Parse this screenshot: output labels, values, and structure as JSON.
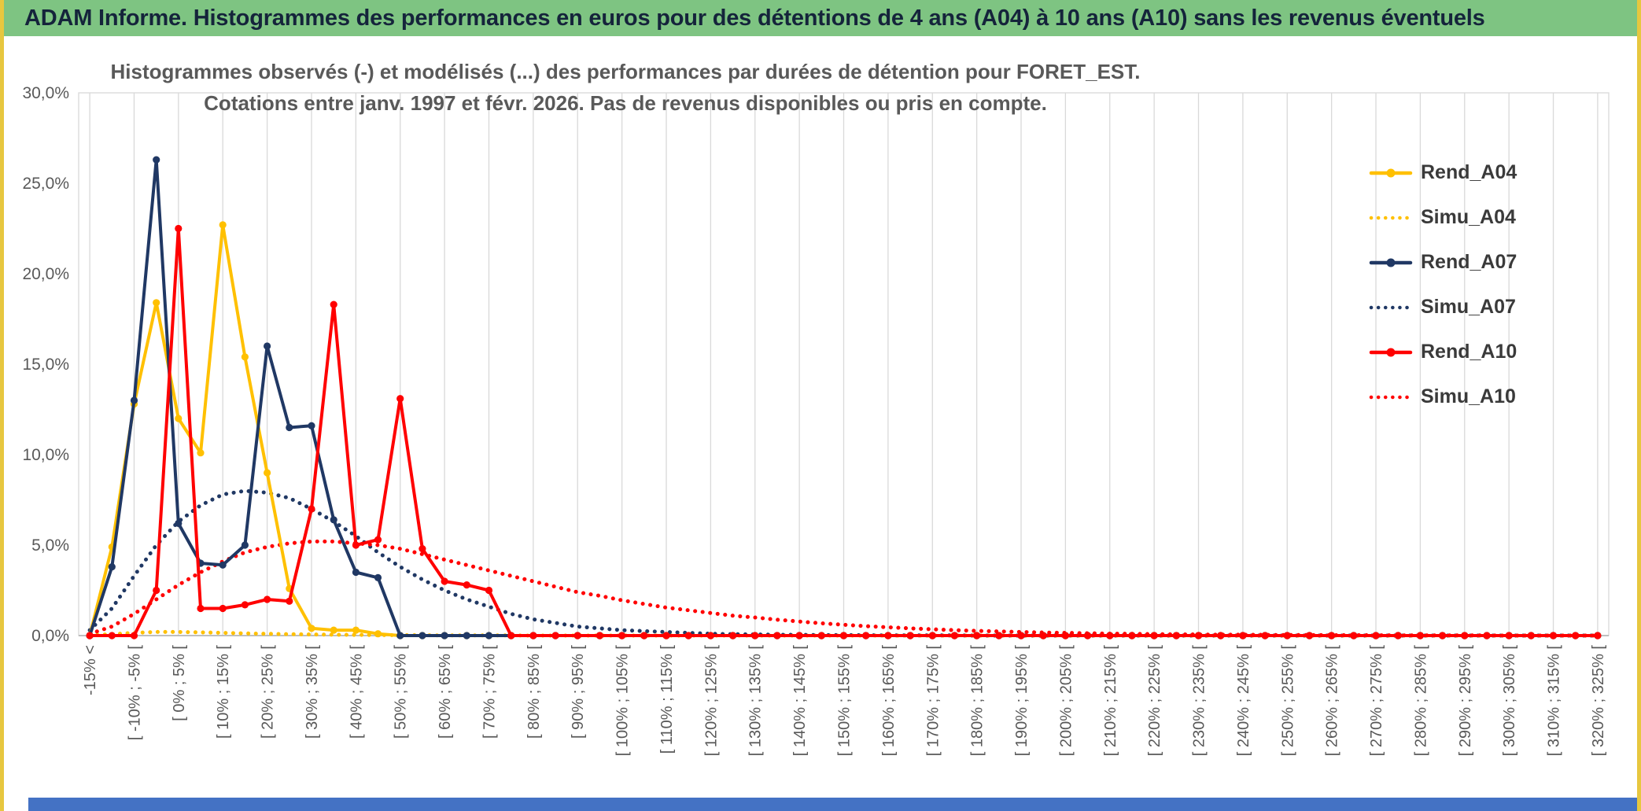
{
  "header": {
    "title": "ADAM Informe. Histogrammes des performances en euros pour des détentions de 4 ans (A04) à 10 ans (A10) sans les revenus éventuels"
  },
  "colors": {
    "header_bg": "#7EC482",
    "header_text": "#15243B",
    "grid": "#D9D9D9",
    "axis_text": "#595959",
    "subtitle_text": "#595959",
    "side_border": "#E7C73F",
    "bottom_bar": "#4472C4",
    "gold": "#FFC000",
    "navy": "#203864",
    "red": "#FF0000"
  },
  "chart_data": {
    "type": "line",
    "title_lines": [
      "Histogrammes observés (-) et modélisés (...) des performances par durées de détention pour FORET_EST.",
      "Cotations entre janv. 1997 et févr. 2026. Pas de revenus disponibles ou pris en compte."
    ],
    "y_axis": {
      "min_percent": 0,
      "max_percent": 30,
      "tick_step_percent": 5,
      "tick_labels": [
        "0,0%",
        "5,0%",
        "10,0%",
        "15,0%",
        "20,0%",
        "25,0%",
        "30,0%"
      ]
    },
    "x_axis": {
      "bins_total": 69,
      "tick_every": 2,
      "unlabeled_bins": "intermediate 5%-wide intervals between the labeled ticks",
      "tick_labels": [
        "-15% <",
        "[ -10% ; -5% [",
        "[ 0% ; 5% [",
        "[ 10% ; 15% [",
        "[ 20% ; 25% [",
        "[ 30% ; 35% [",
        "[ 40% ; 45% [",
        "[ 50% ; 55% [",
        "[ 60% ; 65% [",
        "[ 70% ; 75% [",
        "[ 80% ; 85% [",
        "[ 90% ; 95% [",
        "[ 100% ; 105% [",
        "[ 110% ; 115% [",
        "[ 120% ; 125% [",
        "[ 130% ; 135% [",
        "[ 140% ; 145% [",
        "[ 150% ; 155% [",
        "[ 160% ; 165% [",
        "[ 170% ; 175% [",
        "[ 180% ; 185% [",
        "[ 190% ; 195% [",
        "[ 200% ; 205% [",
        "[ 210% ; 215% [",
        "[ 220% ; 225% [",
        "[ 230% ; 235% [",
        "[ 240% ; 245% [",
        "[ 250% ; 255% [",
        "[ 260% ; 265% [",
        "[ 270% ; 275% [",
        "[ 280% ; 285% [",
        "[ 290% ; 295% [",
        "[ 300% ; 305% [",
        "[ 310% ; 315% [",
        "[ 320% ; 325% ["
      ]
    },
    "values_unit": "percent of observations per bin (estimated from plot)",
    "zero_padded_to_bins_total": true,
    "series": [
      {
        "name": "Rend_A04",
        "color": "#FFC000",
        "style": "solid",
        "values": [
          0,
          4.9,
          12.8,
          18.4,
          12.0,
          10.1,
          22.7,
          15.4,
          9.0,
          2.6,
          0.4,
          0.3,
          0.3,
          0.1,
          0
        ]
      },
      {
        "name": "Simu_A04",
        "color": "#FFC000",
        "style": "dotted",
        "values": [
          0.02,
          0.08,
          0.15,
          0.2,
          0.2,
          0.18,
          0.15,
          0.12,
          0.1,
          0.08,
          0.06,
          0.05,
          0.04,
          0.03,
          0.02,
          0.02,
          0.01,
          0.01,
          0.01,
          0.01
        ]
      },
      {
        "name": "Rend_A07",
        "color": "#203864",
        "style": "solid",
        "values": [
          0,
          3.8,
          13.0,
          26.3,
          6.2,
          4.0,
          3.9,
          5.0,
          16.0,
          11.5,
          11.6,
          6.4,
          3.5,
          3.2,
          0
        ]
      },
      {
        "name": "Simu_A07",
        "color": "#203864",
        "style": "dotted",
        "values": [
          0.3,
          1.5,
          3.3,
          5.0,
          6.3,
          7.2,
          7.8,
          8.0,
          7.9,
          7.6,
          7.0,
          6.3,
          5.5,
          4.6,
          3.8,
          3.1,
          2.5,
          2.0,
          1.6,
          1.2,
          0.9,
          0.7,
          0.5,
          0.4,
          0.3,
          0.25,
          0.2,
          0.15,
          0.1,
          0.08,
          0.06,
          0.05,
          0.04,
          0.03,
          0.02,
          0.02,
          0.01,
          0.01,
          0.01,
          0.01
        ]
      },
      {
        "name": "Rend_A10",
        "color": "#FF0000",
        "style": "solid",
        "values": [
          0,
          0,
          0,
          2.5,
          22.5,
          1.5,
          1.5,
          1.7,
          2.0,
          1.9,
          7.0,
          18.3,
          5.0,
          5.3,
          13.1,
          4.8,
          3.0,
          2.8,
          2.5,
          0
        ]
      },
      {
        "name": "Simu_A10",
        "color": "#FF0000",
        "style": "dotted",
        "values": [
          0.1,
          0.5,
          1.2,
          2.0,
          2.8,
          3.5,
          4.1,
          4.6,
          4.9,
          5.1,
          5.2,
          5.2,
          5.1,
          5.0,
          4.8,
          4.5,
          4.2,
          3.9,
          3.6,
          3.3,
          3.0,
          2.7,
          2.4,
          2.2,
          1.95,
          1.75,
          1.55,
          1.4,
          1.25,
          1.1,
          1.0,
          0.88,
          0.78,
          0.68,
          0.6,
          0.52,
          0.46,
          0.4,
          0.35,
          0.3,
          0.26,
          0.23,
          0.2,
          0.17,
          0.15,
          0.13,
          0.11,
          0.1,
          0.08,
          0.07,
          0.06,
          0.05,
          0.05,
          0.04,
          0.03,
          0.03,
          0.02,
          0.02,
          0.02,
          0.01,
          0.01,
          0.01,
          0.01,
          0.01
        ]
      }
    ],
    "legend": {
      "position": "right",
      "entries": [
        "Rend_A04",
        "Simu_A04",
        "Rend_A07",
        "Simu_A07",
        "Rend_A10",
        "Simu_A10"
      ]
    }
  }
}
